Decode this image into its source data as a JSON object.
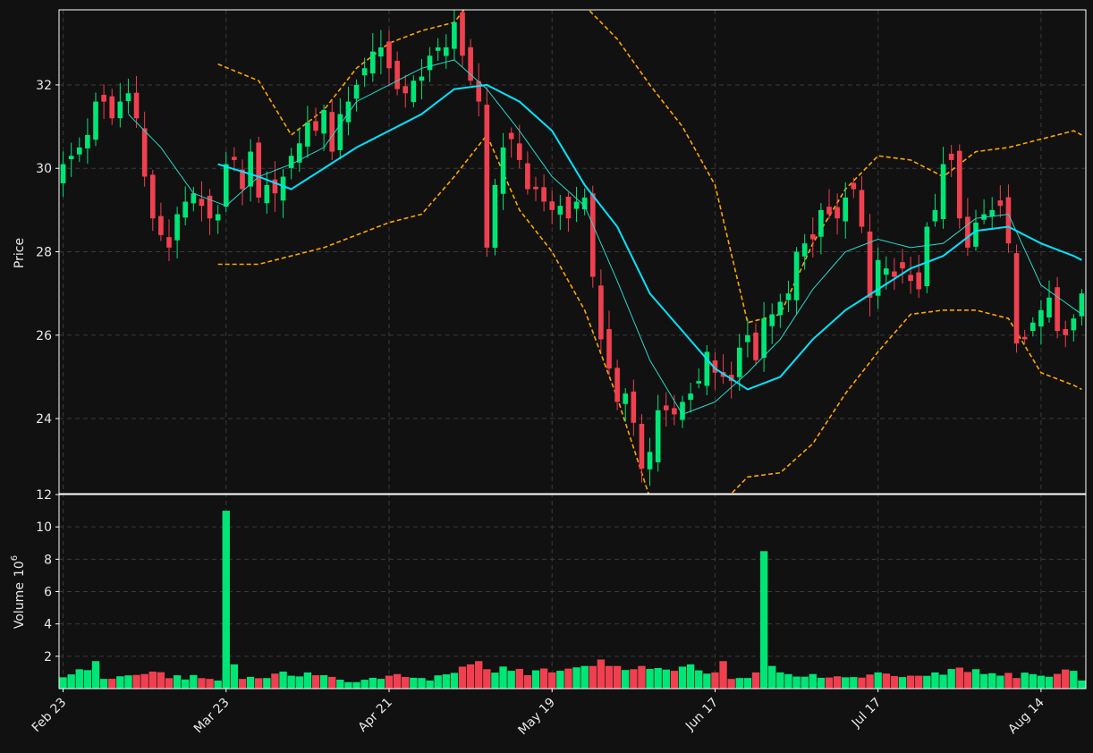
{
  "chart_data": {
    "type": "candlestick",
    "colors": {
      "background": "#111111",
      "up": "#00e676",
      "down": "#f0404f",
      "sma_fast": "#26d9c9",
      "sma_slow": "#00e5ff",
      "bollinger": "#ffa500",
      "grid": "#3a3a3a",
      "text": "#e8e8e8"
    },
    "x_tick_labels": [
      "Feb 23",
      "Mar 23",
      "Apr 21",
      "May 19",
      "Jun 17",
      "Jul 17",
      "Aug 14"
    ],
    "x_tick_indices": [
      0,
      20,
      40,
      60,
      80,
      100,
      120
    ],
    "price_panel": {
      "ylabel": "Price",
      "ylim": [
        22.2,
        33.8
      ],
      "yticks": [
        24,
        26,
        28,
        30,
        32
      ],
      "grid": true
    },
    "volume_panel": {
      "ylabel": "Volume",
      "ylabel_exponent": "10",
      "ylabel_exponent_power": "6",
      "ylim": [
        0,
        12
      ],
      "yticks": [
        2,
        4,
        6,
        8,
        10,
        12
      ],
      "grid": true
    },
    "n_bars": 126,
    "anchors": {
      "close": [
        [
          0,
          30.1
        ],
        [
          2,
          30.5
        ],
        [
          3,
          30.8
        ],
        [
          4,
          31.6
        ],
        [
          5,
          31.6
        ],
        [
          6,
          31.2
        ],
        [
          7,
          31.6
        ],
        [
          8,
          31.8
        ],
        [
          9,
          31.2
        ],
        [
          10,
          29.8
        ],
        [
          11,
          28.8
        ],
        [
          12,
          28.4
        ],
        [
          13,
          28.1
        ],
        [
          14,
          28.9
        ],
        [
          15,
          29.2
        ],
        [
          16,
          29.4
        ],
        [
          17,
          29.1
        ],
        [
          18,
          28.8
        ],
        [
          19,
          28.9
        ],
        [
          20,
          30.1
        ],
        [
          21,
          30.2
        ],
        [
          22,
          29.5
        ],
        [
          23,
          30.4
        ],
        [
          24,
          29.3
        ],
        [
          25,
          29.6
        ],
        [
          26,
          29.4
        ],
        [
          27,
          29.8
        ],
        [
          28,
          30.3
        ],
        [
          29,
          30.6
        ],
        [
          30,
          31.1
        ],
        [
          31,
          30.9
        ],
        [
          32,
          31.4
        ],
        [
          33,
          30.4
        ],
        [
          34,
          31.3
        ],
        [
          35,
          31.6
        ],
        [
          36,
          32.0
        ],
        [
          37,
          32.4
        ],
        [
          38,
          32.8
        ],
        [
          39,
          32.9
        ],
        [
          40,
          32.4
        ],
        [
          41,
          31.9
        ],
        [
          42,
          31.8
        ],
        [
          43,
          32.1
        ],
        [
          44,
          32.2
        ],
        [
          45,
          32.7
        ],
        [
          46,
          32.9
        ],
        [
          47,
          32.9
        ],
        [
          48,
          33.5
        ],
        [
          49,
          32.7
        ],
        [
          50,
          32.1
        ],
        [
          51,
          31.6
        ],
        [
          52,
          28.1
        ],
        [
          53,
          29.6
        ],
        [
          54,
          30.5
        ],
        [
          55,
          30.7
        ],
        [
          56,
          30.2
        ],
        [
          57,
          29.5
        ],
        [
          58,
          29.5
        ],
        [
          59,
          29.2
        ],
        [
          60,
          29.0
        ],
        [
          61,
          29.1
        ],
        [
          62,
          28.8
        ],
        [
          63,
          29.2
        ],
        [
          64,
          29.3
        ],
        [
          65,
          27.4
        ],
        [
          66,
          25.9
        ],
        [
          67,
          25.2
        ],
        [
          68,
          24.4
        ],
        [
          69,
          24.6
        ],
        [
          70,
          23.9
        ],
        [
          71,
          22.8
        ],
        [
          72,
          23.2
        ],
        [
          73,
          24.2
        ],
        [
          74,
          24.2
        ],
        [
          75,
          24.1
        ],
        [
          76,
          24.4
        ],
        [
          77,
          24.6
        ],
        [
          78,
          24.9
        ],
        [
          79,
          25.6
        ],
        [
          80,
          25.1
        ],
        [
          81,
          25.0
        ],
        [
          82,
          24.9
        ],
        [
          83,
          25.7
        ],
        [
          84,
          26.0
        ],
        [
          85,
          25.4
        ],
        [
          86,
          26.4
        ],
        [
          87,
          26.5
        ],
        [
          88,
          26.8
        ],
        [
          89,
          27.0
        ],
        [
          90,
          28.0
        ],
        [
          91,
          28.2
        ],
        [
          92,
          28.3
        ],
        [
          93,
          29.0
        ],
        [
          94,
          28.9
        ],
        [
          95,
          28.8
        ],
        [
          96,
          29.3
        ],
        [
          97,
          29.5
        ],
        [
          98,
          28.6
        ],
        [
          99,
          26.9
        ],
        [
          100,
          27.8
        ],
        [
          101,
          27.6
        ],
        [
          102,
          27.4
        ],
        [
          103,
          27.6
        ],
        [
          104,
          27.3
        ],
        [
          105,
          27.1
        ],
        [
          106,
          28.6
        ],
        [
          107,
          29.0
        ],
        [
          108,
          30.1
        ],
        [
          109,
          30.2
        ],
        [
          110,
          28.8
        ],
        [
          111,
          28.1
        ],
        [
          112,
          28.7
        ],
        [
          113,
          28.9
        ],
        [
          114,
          29.0
        ],
        [
          115,
          29.1
        ],
        [
          116,
          28.2
        ],
        [
          117,
          25.8
        ],
        [
          118,
          25.9
        ],
        [
          119,
          26.3
        ],
        [
          120,
          26.6
        ],
        [
          121,
          26.9
        ],
        [
          122,
          26.1
        ],
        [
          123,
          26.0
        ],
        [
          124,
          26.4
        ],
        [
          125,
          27.0
        ]
      ],
      "sma_fast": [
        [
          8,
          31.3
        ],
        [
          12,
          30.5
        ],
        [
          16,
          29.4
        ],
        [
          20,
          29.1
        ],
        [
          24,
          29.8
        ],
        [
          28,
          30.1
        ],
        [
          32,
          30.5
        ],
        [
          36,
          31.6
        ],
        [
          40,
          32.0
        ],
        [
          44,
          32.4
        ],
        [
          48,
          32.6
        ],
        [
          52,
          31.9
        ],
        [
          56,
          30.9
        ],
        [
          60,
          29.8
        ],
        [
          64,
          29.1
        ],
        [
          68,
          27.3
        ],
        [
          72,
          25.4
        ],
        [
          76,
          24.1
        ],
        [
          80,
          24.4
        ],
        [
          84,
          25.1
        ],
        [
          88,
          25.9
        ],
        [
          92,
          27.1
        ],
        [
          96,
          28.0
        ],
        [
          100,
          28.3
        ],
        [
          104,
          28.1
        ],
        [
          108,
          28.2
        ],
        [
          112,
          28.8
        ],
        [
          116,
          28.9
        ],
        [
          120,
          27.2
        ],
        [
          125,
          26.5
        ]
      ],
      "sma_slow": [
        [
          19,
          30.1
        ],
        [
          24,
          29.8
        ],
        [
          28,
          29.5
        ],
        [
          32,
          30.0
        ],
        [
          36,
          30.5
        ],
        [
          40,
          30.9
        ],
        [
          44,
          31.3
        ],
        [
          48,
          31.9
        ],
        [
          52,
          32.0
        ],
        [
          56,
          31.6
        ],
        [
          60,
          30.9
        ],
        [
          64,
          29.6
        ],
        [
          68,
          28.6
        ],
        [
          72,
          27.0
        ],
        [
          76,
          26.1
        ],
        [
          80,
          25.2
        ],
        [
          84,
          24.7
        ],
        [
          88,
          25.0
        ],
        [
          92,
          25.9
        ],
        [
          96,
          26.6
        ],
        [
          100,
          27.1
        ],
        [
          104,
          27.6
        ],
        [
          108,
          27.9
        ],
        [
          112,
          28.5
        ],
        [
          116,
          28.6
        ],
        [
          120,
          28.2
        ],
        [
          124,
          27.9
        ],
        [
          125,
          27.8
        ]
      ],
      "bb_upper": [
        [
          19,
          32.5
        ],
        [
          24,
          32.1
        ],
        [
          28,
          30.8
        ],
        [
          32,
          31.4
        ],
        [
          36,
          32.4
        ],
        [
          40,
          33.0
        ],
        [
          44,
          33.3
        ],
        [
          48,
          33.5
        ],
        [
          52,
          34.5
        ],
        [
          56,
          35.5
        ],
        [
          60,
          34.2
        ],
        [
          64,
          33.9
        ],
        [
          68,
          33.1
        ],
        [
          72,
          32.0
        ],
        [
          76,
          31.0
        ],
        [
          80,
          29.6
        ],
        [
          84,
          26.3
        ],
        [
          88,
          26.5
        ],
        [
          92,
          28.2
        ],
        [
          96,
          29.5
        ],
        [
          100,
          30.3
        ],
        [
          104,
          30.2
        ],
        [
          108,
          29.8
        ],
        [
          112,
          30.4
        ],
        [
          116,
          30.5
        ],
        [
          120,
          30.7
        ],
        [
          124,
          30.9
        ],
        [
          125,
          30.8
        ]
      ],
      "bb_lower": [
        [
          19,
          27.7
        ],
        [
          24,
          27.7
        ],
        [
          28,
          27.9
        ],
        [
          32,
          28.1
        ],
        [
          36,
          28.4
        ],
        [
          40,
          28.7
        ],
        [
          44,
          28.9
        ],
        [
          48,
          29.8
        ],
        [
          52,
          30.8
        ],
        [
          56,
          29.0
        ],
        [
          60,
          28.0
        ],
        [
          64,
          26.6
        ],
        [
          68,
          24.5
        ],
        [
          72,
          22.1
        ],
        [
          76,
          21.2
        ],
        [
          80,
          21.8
        ],
        [
          84,
          22.6
        ],
        [
          88,
          22.7
        ],
        [
          92,
          23.4
        ],
        [
          96,
          24.6
        ],
        [
          100,
          25.6
        ],
        [
          104,
          26.5
        ],
        [
          108,
          26.6
        ],
        [
          112,
          26.6
        ],
        [
          116,
          26.4
        ],
        [
          120,
          25.1
        ],
        [
          124,
          24.8
        ],
        [
          125,
          24.7
        ]
      ],
      "volume": [
        [
          0,
          0.7
        ],
        [
          4,
          1.7
        ],
        [
          5,
          0.6
        ],
        [
          10,
          0.9
        ],
        [
          18,
          0.6
        ],
        [
          19,
          0.5
        ],
        [
          20,
          11.0
        ],
        [
          21,
          1.5
        ],
        [
          22,
          0.6
        ],
        [
          30,
          1.0
        ],
        [
          35,
          0.4
        ],
        [
          40,
          0.8
        ],
        [
          45,
          0.5
        ],
        [
          50,
          1.5
        ],
        [
          51,
          1.7
        ],
        [
          52,
          1.2
        ],
        [
          55,
          1.1
        ],
        [
          60,
          1.0
        ],
        [
          65,
          1.4
        ],
        [
          66,
          1.8
        ],
        [
          67,
          1.4
        ],
        [
          70,
          1.2
        ],
        [
          75,
          1.1
        ],
        [
          77,
          1.5
        ],
        [
          80,
          1.0
        ],
        [
          81,
          1.7
        ],
        [
          82,
          0.6
        ],
        [
          85,
          1.0
        ],
        [
          86,
          8.5
        ],
        [
          87,
          1.4
        ],
        [
          88,
          1.0
        ],
        [
          92,
          0.9
        ],
        [
          96,
          0.7
        ],
        [
          100,
          1.0
        ],
        [
          104,
          0.8
        ],
        [
          107,
          1.0
        ],
        [
          110,
          1.3
        ],
        [
          112,
          1.2
        ],
        [
          115,
          0.8
        ],
        [
          120,
          0.8
        ],
        [
          124,
          1.1
        ],
        [
          125,
          0.5
        ]
      ]
    }
  }
}
